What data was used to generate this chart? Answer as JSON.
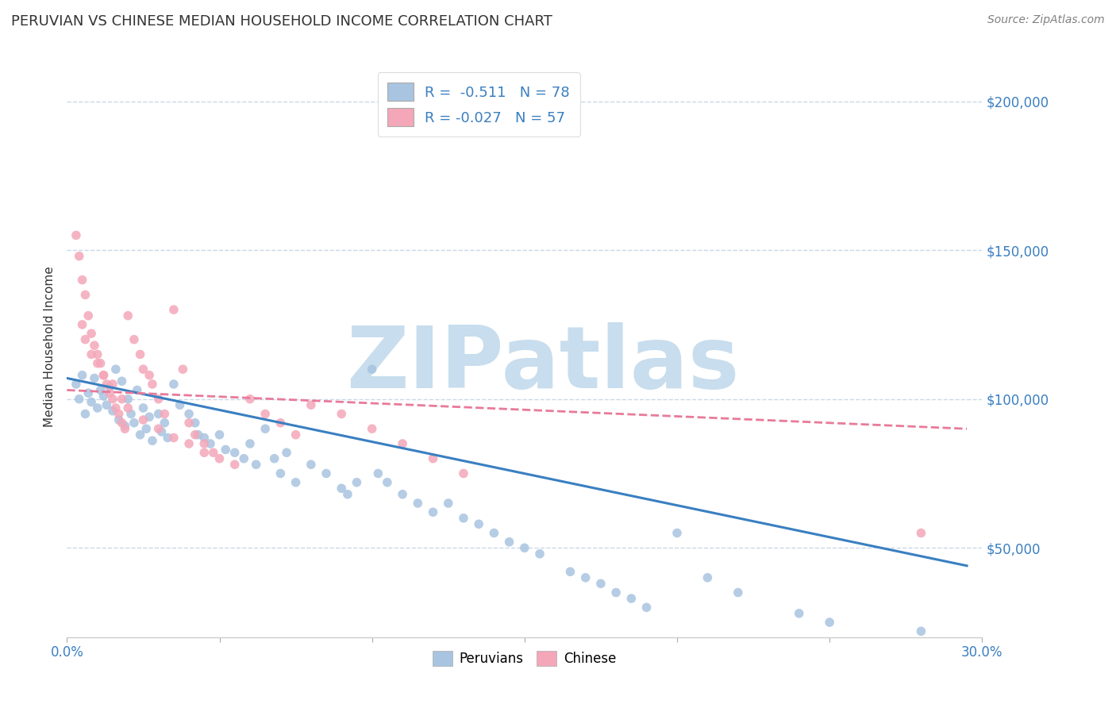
{
  "title": "PERUVIAN VS CHINESE MEDIAN HOUSEHOLD INCOME CORRELATION CHART",
  "source": "Source: ZipAtlas.com",
  "ylabel": "Median Household Income",
  "xlim": [
    0.0,
    0.3
  ],
  "ylim": [
    20000,
    215000
  ],
  "xticks": [
    0.0,
    0.05,
    0.1,
    0.15,
    0.2,
    0.25,
    0.3
  ],
  "xticklabels": [
    "0.0%",
    "",
    "",
    "",
    "",
    "",
    "30.0%"
  ],
  "yticks": [
    50000,
    100000,
    150000,
    200000
  ],
  "yticklabels": [
    "$50,000",
    "$100,000",
    "$150,000",
    "$200,000"
  ],
  "peruvian_color": "#a8c4e0",
  "chinese_color": "#f4a7b9",
  "peruvian_line_color": "#3a7fc1",
  "chinese_line_color": "#e87a9a",
  "legend_line1": "R =  -0.511   N = 78",
  "legend_line2": "R = -0.027   N = 57",
  "watermark": "ZIPatlas",
  "watermark_color": "#c8dded",
  "background_color": "#ffffff",
  "grid_color": "#c8d8e8",
  "tick_color": "#3a7fc1",
  "peruvian_scatter_x": [
    0.003,
    0.004,
    0.005,
    0.006,
    0.007,
    0.008,
    0.009,
    0.01,
    0.011,
    0.012,
    0.013,
    0.014,
    0.015,
    0.016,
    0.017,
    0.018,
    0.019,
    0.02,
    0.021,
    0.022,
    0.023,
    0.024,
    0.025,
    0.026,
    0.027,
    0.028,
    0.03,
    0.031,
    0.032,
    0.033,
    0.035,
    0.037,
    0.04,
    0.042,
    0.043,
    0.045,
    0.047,
    0.05,
    0.052,
    0.055,
    0.058,
    0.06,
    0.062,
    0.065,
    0.068,
    0.07,
    0.072,
    0.075,
    0.08,
    0.085,
    0.09,
    0.092,
    0.095,
    0.1,
    0.102,
    0.105,
    0.11,
    0.115,
    0.12,
    0.125,
    0.13,
    0.135,
    0.14,
    0.145,
    0.15,
    0.155,
    0.165,
    0.17,
    0.175,
    0.18,
    0.185,
    0.19,
    0.2,
    0.21,
    0.22,
    0.24,
    0.25,
    0.28
  ],
  "peruvian_scatter_y": [
    105000,
    100000,
    108000,
    95000,
    102000,
    99000,
    107000,
    97000,
    103000,
    101000,
    98000,
    104000,
    96000,
    110000,
    93000,
    106000,
    91000,
    100000,
    95000,
    92000,
    103000,
    88000,
    97000,
    90000,
    94000,
    86000,
    95000,
    89000,
    92000,
    87000,
    105000,
    98000,
    95000,
    92000,
    88000,
    87000,
    85000,
    88000,
    83000,
    82000,
    80000,
    85000,
    78000,
    90000,
    80000,
    75000,
    82000,
    72000,
    78000,
    75000,
    70000,
    68000,
    72000,
    110000,
    75000,
    72000,
    68000,
    65000,
    62000,
    65000,
    60000,
    58000,
    55000,
    52000,
    50000,
    48000,
    42000,
    40000,
    38000,
    35000,
    33000,
    30000,
    55000,
    40000,
    35000,
    28000,
    25000,
    22000
  ],
  "chinese_scatter_x": [
    0.003,
    0.004,
    0.005,
    0.006,
    0.007,
    0.008,
    0.009,
    0.01,
    0.011,
    0.012,
    0.013,
    0.014,
    0.015,
    0.016,
    0.017,
    0.018,
    0.019,
    0.02,
    0.022,
    0.024,
    0.025,
    0.027,
    0.028,
    0.03,
    0.032,
    0.035,
    0.038,
    0.04,
    0.042,
    0.045,
    0.048,
    0.05,
    0.055,
    0.06,
    0.065,
    0.07,
    0.075,
    0.08,
    0.09,
    0.1,
    0.11,
    0.12,
    0.13,
    0.005,
    0.006,
    0.008,
    0.01,
    0.012,
    0.015,
    0.018,
    0.02,
    0.025,
    0.03,
    0.035,
    0.04,
    0.045,
    0.28
  ],
  "chinese_scatter_y": [
    155000,
    148000,
    140000,
    135000,
    128000,
    122000,
    118000,
    115000,
    112000,
    108000,
    105000,
    102000,
    100000,
    97000,
    95000,
    92000,
    90000,
    128000,
    120000,
    115000,
    110000,
    108000,
    105000,
    100000,
    95000,
    130000,
    110000,
    92000,
    88000,
    85000,
    82000,
    80000,
    78000,
    100000,
    95000,
    92000,
    88000,
    98000,
    95000,
    90000,
    85000,
    80000,
    75000,
    125000,
    120000,
    115000,
    112000,
    108000,
    105000,
    100000,
    97000,
    93000,
    90000,
    87000,
    85000,
    82000,
    55000
  ],
  "peruvian_trend_x": [
    0.0,
    0.295
  ],
  "peruvian_trend_y": [
    107000,
    44000
  ],
  "chinese_trend_x": [
    0.0,
    0.295
  ],
  "chinese_trend_y": [
    103000,
    90000
  ]
}
